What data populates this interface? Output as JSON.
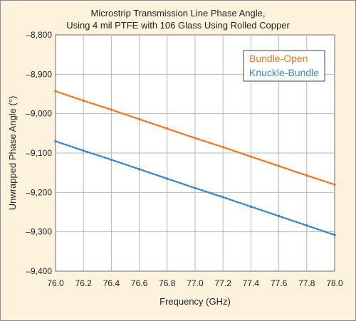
{
  "chart_data": {
    "type": "line",
    "title_line1": "Microstrip Transmission Line Phase Angle,",
    "title_line2": "Using 4 mil PTFE with 106 Glass Using Rolled Copper",
    "xlabel": "Frequency (GHz)",
    "ylabel": "Unwrapped Phase Angle (°)",
    "xlim": [
      76.0,
      78.0
    ],
    "ylim": [
      -9400,
      -8800
    ],
    "xticks": [
      "76.0",
      "76.2",
      "76.4",
      "76.6",
      "76.8",
      "77.0",
      "77.2",
      "77.4",
      "77.6",
      "77.8",
      "78.0"
    ],
    "yticks": [
      "–8,800",
      "–8,900",
      "–9,000",
      "–9,100",
      "–9,200",
      "–9,300",
      "–9,400"
    ],
    "grid": true,
    "legend_position": "top-right",
    "series": [
      {
        "name": "Bundle-Open",
        "color": "#e8782a",
        "x": [
          76.0,
          76.2,
          76.4,
          76.6,
          76.8,
          77.0,
          77.2,
          77.4,
          77.6,
          77.8,
          78.0
        ],
        "y": [
          -8943,
          -8967,
          -8990,
          -9014,
          -9038,
          -9062,
          -9085,
          -9109,
          -9133,
          -9157,
          -9180
        ]
      },
      {
        "name": "Knuckle-Bundle",
        "color": "#3a85c9",
        "x": [
          76.0,
          76.2,
          76.4,
          76.6,
          76.8,
          77.0,
          77.2,
          77.4,
          77.6,
          77.8,
          78.0
        ],
        "y": [
          -9070,
          -9094,
          -9117,
          -9141,
          -9165,
          -9189,
          -9212,
          -9236,
          -9260,
          -9284,
          -9308
        ]
      }
    ]
  }
}
